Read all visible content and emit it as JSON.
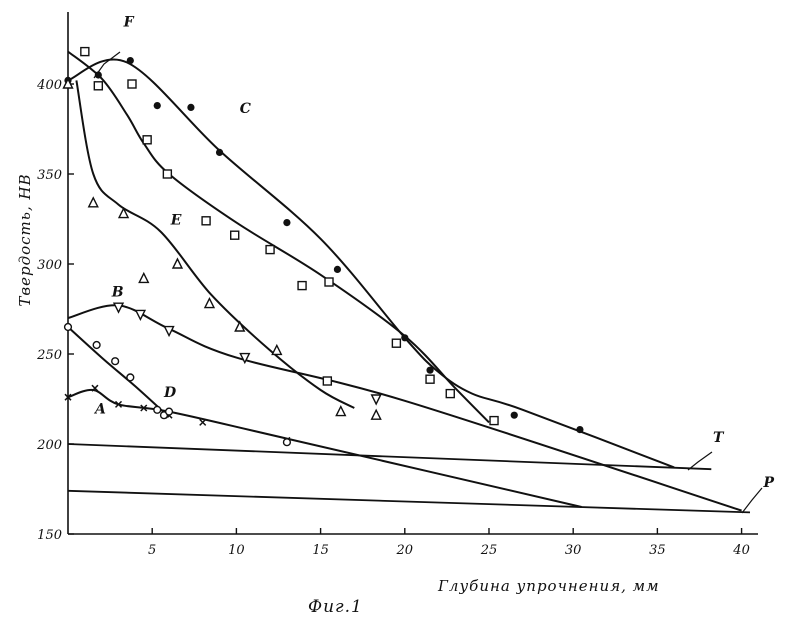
{
  "chart_data": {
    "type": "line",
    "title": "",
    "caption": "Фиг.1",
    "xlabel": "Глубина упрочнения, мм",
    "ylabel": "Твердость, HB",
    "xlim": [
      0,
      40.5
    ],
    "ylim": [
      150,
      440
    ],
    "x_ticks": [
      5,
      10,
      15,
      20,
      25,
      30,
      35,
      40
    ],
    "y_ticks": [
      150,
      200,
      250,
      300,
      350,
      400
    ],
    "x_tick_labels": [
      "5",
      "10",
      "15",
      "20",
      "25",
      "30",
      "35",
      "40"
    ],
    "y_tick_labels": [
      "150",
      "200",
      "250",
      "300",
      "350",
      "400"
    ],
    "grid": false,
    "series": [
      {
        "name": "A",
        "marker": "x",
        "label_at": [
          1.6,
          217
        ],
        "line": [
          [
            0,
            226
          ],
          [
            1.5,
            230
          ],
          [
            3,
            222
          ],
          [
            6,
            218
          ],
          [
            13,
            203
          ],
          [
            30.5,
            165
          ]
        ],
        "points": [
          [
            0,
            226
          ],
          [
            1.6,
            231
          ],
          [
            3,
            222
          ],
          [
            4.5,
            220
          ],
          [
            6,
            216
          ],
          [
            8,
            212
          ],
          [
            13,
            202
          ]
        ]
      },
      {
        "name": "B",
        "marker": "triangle-down",
        "label_at": [
          2.6,
          282
        ],
        "line": [
          [
            0,
            270
          ],
          [
            3,
            277
          ],
          [
            6,
            264
          ],
          [
            10,
            248
          ],
          [
            20,
            224
          ],
          [
            40,
            163
          ]
        ],
        "points": [
          [
            3,
            276
          ],
          [
            4.3,
            272
          ],
          [
            6,
            263
          ],
          [
            10.5,
            248
          ],
          [
            18.3,
            225
          ]
        ]
      },
      {
        "name": "C",
        "marker": "filled-circle",
        "label_at": [
          10.2,
          384
        ],
        "line": [
          [
            0,
            402
          ],
          [
            3.5,
            412
          ],
          [
            9,
            363
          ],
          [
            15,
            314
          ],
          [
            20,
            259
          ],
          [
            22,
            240
          ],
          [
            24,
            228
          ],
          [
            27,
            219
          ],
          [
            36,
            187
          ]
        ],
        "points": [
          [
            0,
            402
          ],
          [
            1.8,
            405
          ],
          [
            3.7,
            413
          ],
          [
            5.3,
            388
          ],
          [
            7.3,
            387
          ],
          [
            9,
            362
          ],
          [
            13,
            323
          ],
          [
            16,
            297
          ],
          [
            20,
            259
          ],
          [
            21.5,
            241
          ],
          [
            26.5,
            216
          ],
          [
            30.4,
            208
          ]
        ]
      },
      {
        "name": "D",
        "marker": "open-circle",
        "label_at": [
          5.7,
          226
        ],
        "line": [
          [
            0,
            265
          ],
          [
            2,
            248
          ],
          [
            4,
            232
          ],
          [
            6,
            215
          ]
        ],
        "points": [
          [
            0,
            265
          ],
          [
            1.7,
            255
          ],
          [
            2.8,
            246
          ],
          [
            3.7,
            237
          ],
          [
            5.3,
            219
          ],
          [
            5.7,
            216
          ],
          [
            6,
            218
          ],
          [
            13,
            201
          ]
        ]
      },
      {
        "name": "E",
        "marker": "triangle",
        "label_at": [
          6.1,
          322
        ],
        "line": [
          [
            0.5,
            402
          ],
          [
            1.5,
            350
          ],
          [
            3,
            333
          ],
          [
            5.5,
            318
          ],
          [
            8.5,
            283
          ],
          [
            12,
            252
          ],
          [
            15,
            230
          ],
          [
            17,
            220
          ]
        ],
        "points": [
          [
            0,
            400
          ],
          [
            1.5,
            334
          ],
          [
            3.3,
            328
          ],
          [
            4.5,
            292
          ],
          [
            6.5,
            300
          ],
          [
            8.4,
            278
          ],
          [
            10.2,
            265
          ],
          [
            12.4,
            252
          ],
          [
            16.2,
            218
          ],
          [
            18.3,
            216
          ]
        ]
      },
      {
        "name": "F",
        "marker": "square",
        "label_at": [
          3.3,
          432
        ],
        "line": [
          [
            0,
            418
          ],
          [
            2,
            403
          ],
          [
            3.5,
            383
          ],
          [
            4.5,
            367
          ],
          [
            6,
            350
          ],
          [
            10,
            323
          ],
          [
            15,
            294
          ],
          [
            20,
            260
          ],
          [
            23,
            231
          ],
          [
            25,
            212
          ]
        ],
        "points": [
          [
            1,
            418
          ],
          [
            1.8,
            399
          ],
          [
            3.8,
            400
          ],
          [
            4.7,
            369
          ],
          [
            5.9,
            350
          ],
          [
            8.2,
            324
          ],
          [
            9.9,
            316
          ],
          [
            12,
            308
          ],
          [
            13.9,
            288
          ],
          [
            15.5,
            290
          ],
          [
            15.4,
            235
          ],
          [
            19.5,
            256
          ],
          [
            21.5,
            236
          ],
          [
            22.7,
            228
          ],
          [
            25.3,
            213
          ]
        ]
      },
      {
        "name": "T",
        "marker": "none",
        "label_at": [
          38.3,
          201
        ],
        "line": [
          [
            0,
            200
          ],
          [
            38.2,
            186
          ]
        ],
        "points": []
      },
      {
        "name": "P",
        "marker": "none",
        "label_at": [
          41.3,
          176
        ],
        "line": [
          [
            0,
            174
          ],
          [
            40.5,
            162
          ]
        ],
        "points": []
      }
    ]
  }
}
